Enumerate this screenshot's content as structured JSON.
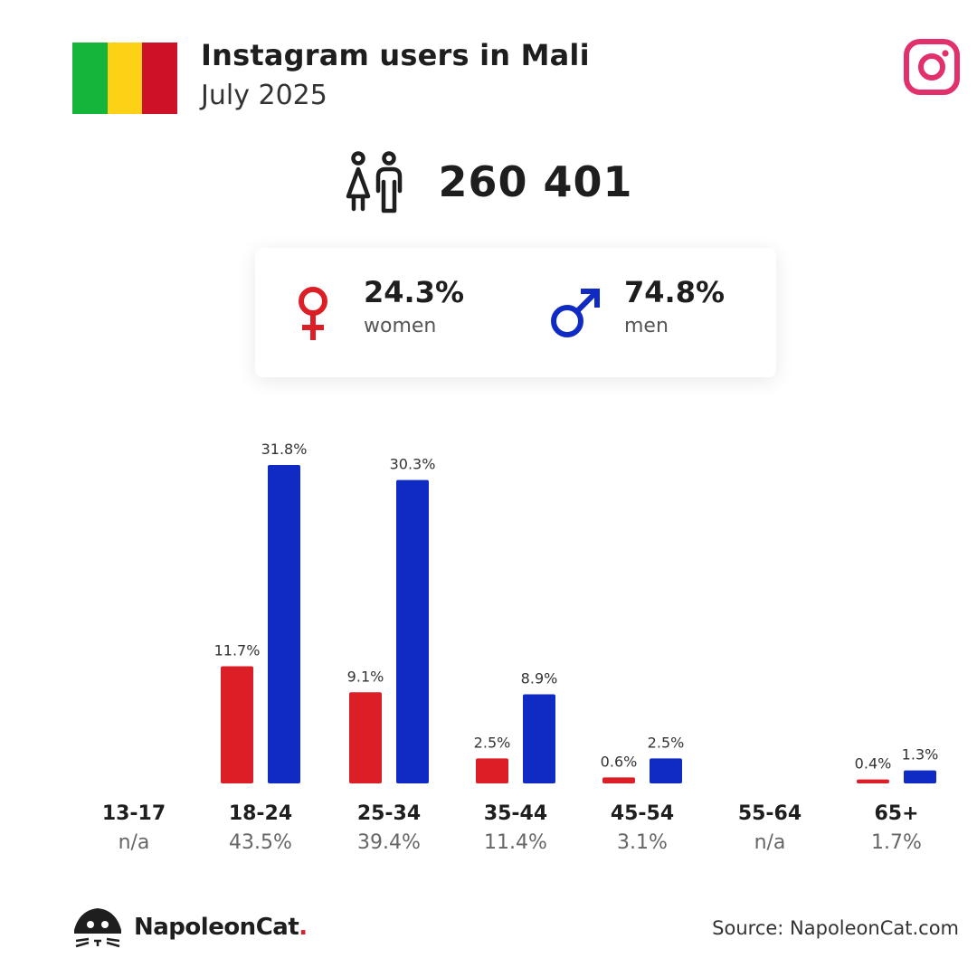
{
  "header": {
    "title": "Instagram users in Mali",
    "subtitle": "July 2025",
    "flag_colors": [
      "#14b53a",
      "#fcd116",
      "#ce1126"
    ]
  },
  "total_users": "260 401",
  "gender": {
    "women_pct": "24.3%",
    "women_label": "women",
    "men_pct": "74.8%",
    "men_label": "men",
    "women_color": "#dc1f26",
    "men_color": "#0f2bc4"
  },
  "chart_data": {
    "type": "bar",
    "categories": [
      "13-17",
      "18-24",
      "25-34",
      "35-44",
      "45-54",
      "55-64",
      "65+"
    ],
    "category_totals": [
      "n/a",
      "43.5%",
      "39.4%",
      "11.4%",
      "3.1%",
      "n/a",
      "1.7%"
    ],
    "series": [
      {
        "color": "#dc1f26",
        "values": [
          null,
          11.7,
          9.1,
          2.5,
          0.6,
          null,
          0.4
        ]
      },
      {
        "color": "#0f2bc4",
        "values": [
          null,
          31.8,
          30.3,
          8.9,
          2.5,
          null,
          1.3
        ]
      }
    ],
    "ylim": [
      0,
      31.8
    ]
  },
  "footer": {
    "brand_name": "NapoleonCat",
    "brand_dot": ".",
    "source": "Source: NapoleonCat.com"
  },
  "icons": {
    "instagram": "instagram-icon",
    "people": "people-icon",
    "female": "female-symbol-icon",
    "male": "male-symbol-icon",
    "logo": "napoleoncat-logo-icon"
  }
}
